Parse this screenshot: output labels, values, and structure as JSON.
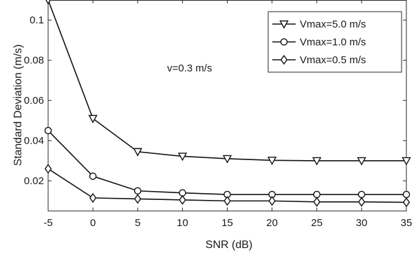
{
  "chart_data": {
    "type": "line",
    "xlabel": "SNR (dB)",
    "ylabel": "Standard Deviation  (m/s)",
    "x": [
      -5,
      0,
      5,
      10,
      15,
      20,
      25,
      30,
      35
    ],
    "xticks": [
      "-5",
      "0",
      "5",
      "10",
      "15",
      "20",
      "25",
      "30",
      "35"
    ],
    "yticks": [
      "0.02",
      "0.04",
      "0.06",
      "0.08",
      "0.1"
    ],
    "xlim": [
      -5,
      35
    ],
    "ylim": [
      0.005,
      0.11
    ],
    "grid": false,
    "legend_position": "top-right",
    "annotation": "v=0.3 m/s",
    "series": [
      {
        "name": "Vmax=5.0 m/s",
        "marker": "triangle-down",
        "values": [
          0.11,
          0.051,
          0.0345,
          0.0322,
          0.031,
          0.0302,
          0.03,
          0.03,
          0.03
        ]
      },
      {
        "name": "Vmax=1.0 m/s",
        "marker": "circle",
        "values": [
          0.045,
          0.0223,
          0.015,
          0.014,
          0.0132,
          0.0132,
          0.0132,
          0.0132,
          0.0132
        ]
      },
      {
        "name": "Vmax=0.5 m/s",
        "marker": "diamond",
        "values": [
          0.026,
          0.0115,
          0.011,
          0.0105,
          0.01,
          0.01,
          0.0095,
          0.0095,
          0.0093
        ]
      }
    ]
  }
}
